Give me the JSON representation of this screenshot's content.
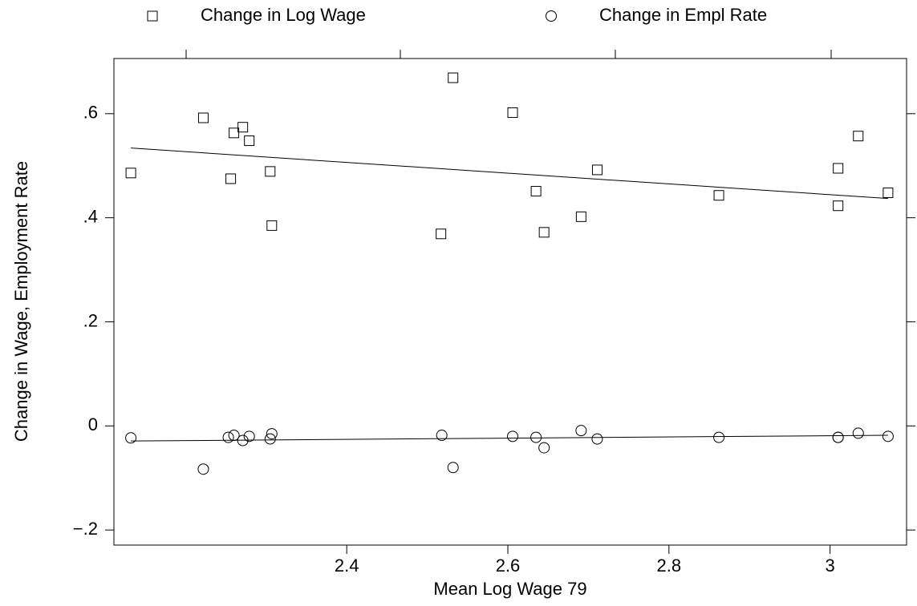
{
  "chart_data": {
    "type": "scatter",
    "xlabel": "Mean Log Wage 79",
    "ylabel": "Change in Wage, Employment Rate",
    "xlim": [
      2.111,
      3.095
    ],
    "ylim": [
      -0.229,
      0.706
    ],
    "xticks": [
      2.4,
      2.6,
      2.8,
      3
    ],
    "yticks": [
      {
        "value": 0.6,
        "label": ".6"
      },
      {
        "value": 0.4,
        "label": ".4"
      },
      {
        "value": 0.2,
        "label": ".2"
      },
      0,
      {
        "value": -0.2,
        "label": "−.2"
      }
    ],
    "color": "#000000",
    "series": [
      {
        "name": "Change in Log Wage",
        "marker": "square",
        "x": [
          2.132,
          2.222,
          2.256,
          2.26,
          2.271,
          2.279,
          2.305,
          2.307,
          2.517,
          2.532,
          2.606,
          2.635,
          2.645,
          2.691,
          2.711,
          2.862,
          3.01,
          3.01,
          3.035,
          3.072
        ],
        "values": [
          0.486,
          0.592,
          0.475,
          0.563,
          0.574,
          0.548,
          0.489,
          0.385,
          0.369,
          0.669,
          0.602,
          0.451,
          0.372,
          0.402,
          0.492,
          0.443,
          0.495,
          0.423,
          0.557,
          0.448
        ],
        "fit": {
          "x": [
            2.132,
            3.072
          ],
          "values": [
            0.534,
            0.437
          ]
        }
      },
      {
        "name": "Change in Empl Rate",
        "marker": "circle",
        "x": [
          2.132,
          2.222,
          2.253,
          2.26,
          2.271,
          2.279,
          2.305,
          2.307,
          2.518,
          2.532,
          2.606,
          2.635,
          2.645,
          2.691,
          2.711,
          2.862,
          3.01,
          3.01,
          3.035,
          3.072
        ],
        "values": [
          -0.023,
          -0.083,
          -0.022,
          -0.018,
          -0.028,
          -0.02,
          -0.025,
          -0.015,
          -0.018,
          -0.08,
          -0.02,
          -0.022,
          -0.042,
          -0.009,
          -0.025,
          -0.022,
          -0.022,
          -0.022,
          -0.014,
          -0.02
        ],
        "fit": {
          "x": [
            2.132,
            3.072
          ],
          "values": [
            -0.029,
            -0.018
          ]
        }
      }
    ]
  }
}
